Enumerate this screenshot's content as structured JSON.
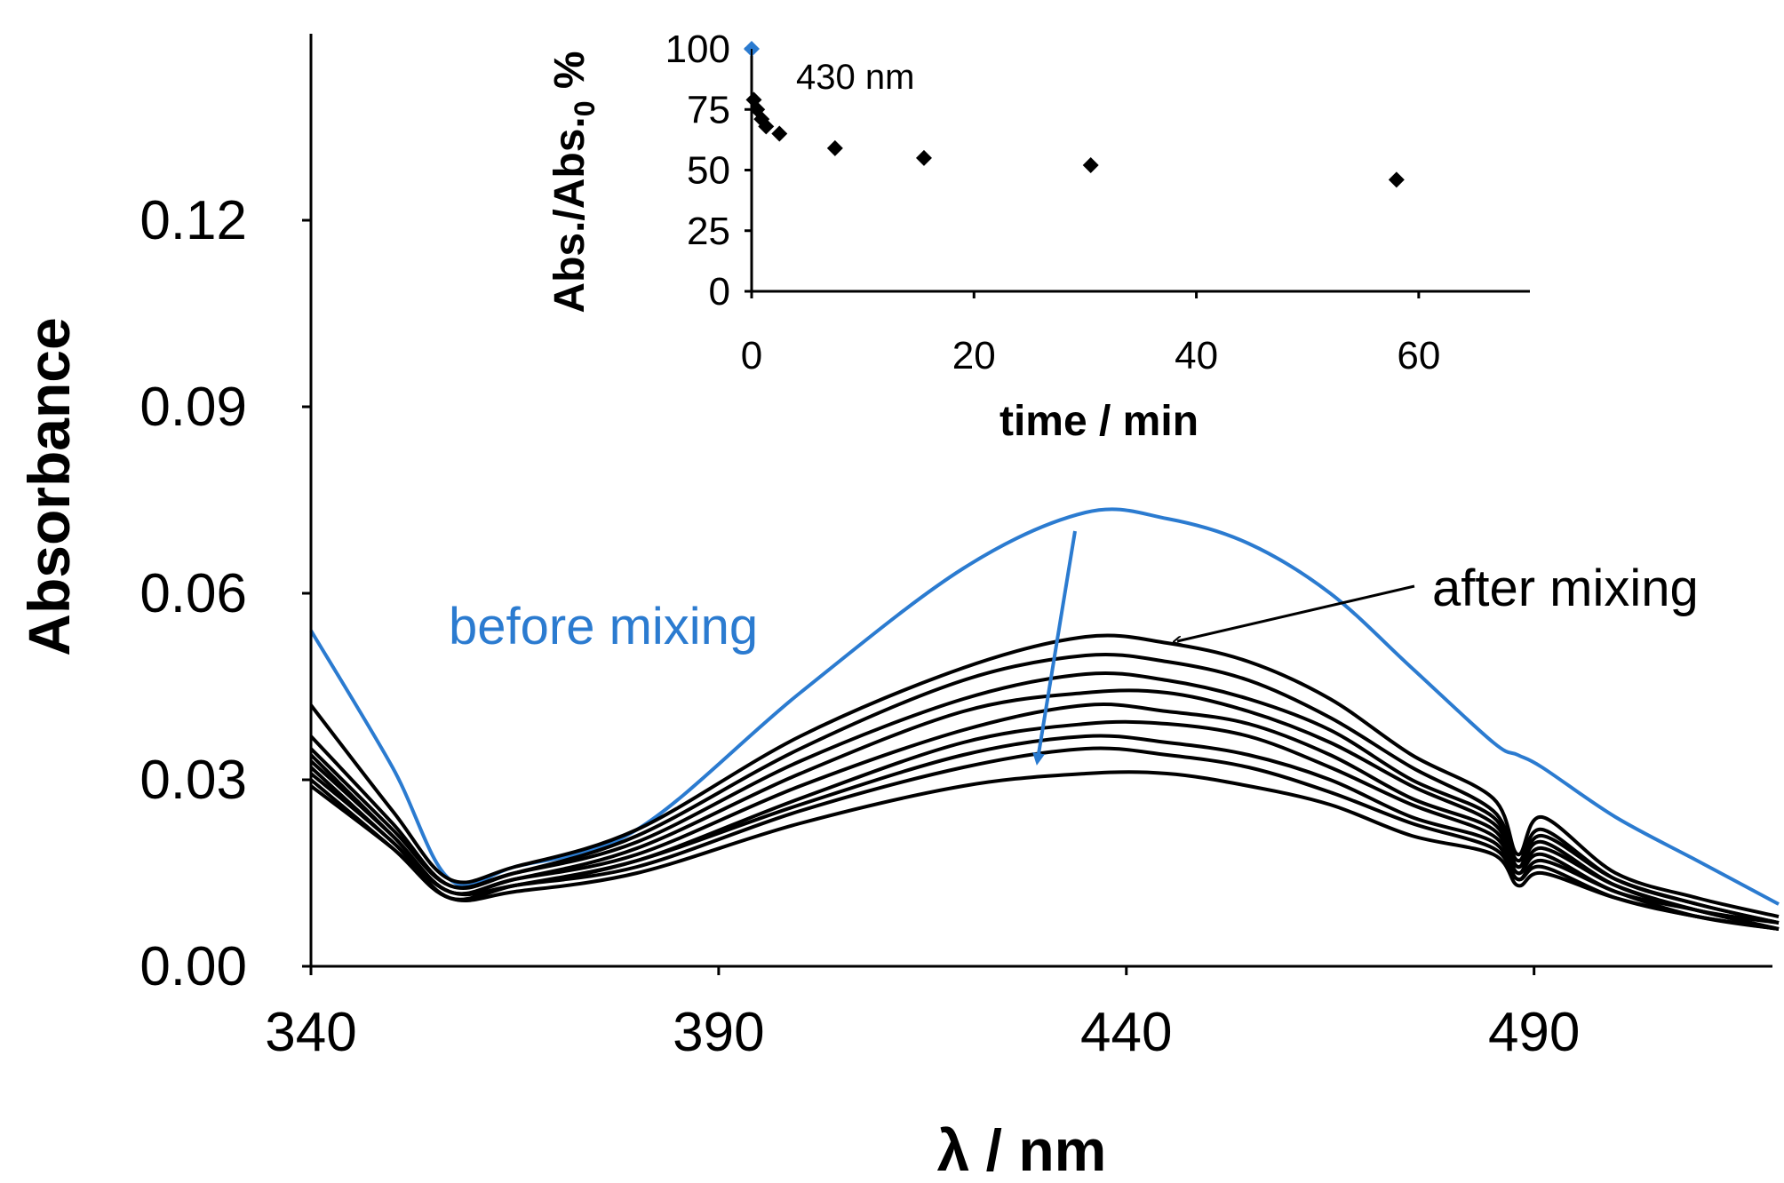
{
  "chart_data": [
    {
      "type": "line",
      "title": "",
      "xlabel": "λ / nm",
      "ylabel": "Absorbance",
      "xlim": [
        340,
        520
      ],
      "ylim": [
        0,
        0.15
      ],
      "x_ticks": [
        340,
        390,
        440,
        490
      ],
      "x_tick_labels": [
        "340",
        "390",
        "440",
        "490"
      ],
      "y_ticks": [
        0,
        0.03,
        0.06,
        0.09,
        0.12
      ],
      "y_tick_labels": [
        "0.00",
        "0.03",
        "0.06",
        "0.09",
        "0.12"
      ],
      "grid": false,
      "legend": "none",
      "colors": {
        "before": "#2b7bd0",
        "after": "#000000"
      },
      "annotations": [
        {
          "text": "before mixing",
          "color": "#2b7bd0"
        },
        {
          "text": "after mixing",
          "color": "#000000"
        }
      ],
      "x": [
        340,
        350,
        357,
        365,
        380,
        400,
        420,
        435,
        445,
        455,
        465,
        475,
        485,
        488,
        491,
        500,
        510,
        520
      ],
      "series": [
        {
          "name": "before mixing",
          "values": [
            0.054,
            0.032,
            0.014,
            0.016,
            0.022,
            0.044,
            0.064,
            0.073,
            0.072,
            0.068,
            0.06,
            0.048,
            0.036,
            0.034,
            0.032,
            0.024,
            0.017,
            0.01
          ]
        },
        {
          "name": "after mixing 1",
          "values": [
            0.042,
            0.025,
            0.014,
            0.016,
            0.022,
            0.037,
            0.048,
            0.053,
            0.052,
            0.049,
            0.043,
            0.034,
            0.027,
            0.018,
            0.024,
            0.015,
            0.011,
            0.008
          ]
        },
        {
          "name": "after mixing 2",
          "values": [
            0.037,
            0.023,
            0.013,
            0.015,
            0.021,
            0.035,
            0.046,
            0.05,
            0.049,
            0.046,
            0.04,
            0.032,
            0.025,
            0.017,
            0.022,
            0.014,
            0.01,
            0.007
          ]
        },
        {
          "name": "after mixing 3",
          "values": [
            0.035,
            0.022,
            0.013,
            0.015,
            0.02,
            0.033,
            0.043,
            0.047,
            0.046,
            0.043,
            0.038,
            0.03,
            0.024,
            0.016,
            0.021,
            0.014,
            0.01,
            0.007
          ]
        },
        {
          "name": "after mixing 4",
          "values": [
            0.034,
            0.021,
            0.012,
            0.014,
            0.019,
            0.031,
            0.041,
            0.044,
            0.044,
            0.041,
            0.036,
            0.029,
            0.023,
            0.016,
            0.02,
            0.013,
            0.009,
            0.007
          ]
        },
        {
          "name": "after mixing 5",
          "values": [
            0.033,
            0.021,
            0.012,
            0.014,
            0.018,
            0.029,
            0.038,
            0.042,
            0.041,
            0.039,
            0.034,
            0.027,
            0.022,
            0.015,
            0.019,
            0.013,
            0.009,
            0.006
          ]
        },
        {
          "name": "after mixing 6",
          "values": [
            0.032,
            0.02,
            0.012,
            0.013,
            0.017,
            0.027,
            0.036,
            0.039,
            0.039,
            0.037,
            0.032,
            0.026,
            0.021,
            0.015,
            0.018,
            0.012,
            0.009,
            0.006
          ]
        },
        {
          "name": "after mixing 7",
          "values": [
            0.031,
            0.02,
            0.011,
            0.013,
            0.017,
            0.026,
            0.034,
            0.037,
            0.036,
            0.034,
            0.03,
            0.024,
            0.02,
            0.014,
            0.017,
            0.012,
            0.008,
            0.006
          ]
        },
        {
          "name": "after mixing 8",
          "values": [
            0.03,
            0.019,
            0.011,
            0.013,
            0.016,
            0.025,
            0.032,
            0.035,
            0.034,
            0.032,
            0.028,
            0.023,
            0.019,
            0.014,
            0.016,
            0.011,
            0.008,
            0.006
          ]
        },
        {
          "name": "after mixing 9",
          "values": [
            0.029,
            0.019,
            0.011,
            0.012,
            0.015,
            0.023,
            0.029,
            0.031,
            0.031,
            0.029,
            0.026,
            0.021,
            0.018,
            0.013,
            0.015,
            0.011,
            0.008,
            0.006
          ]
        }
      ]
    },
    {
      "type": "scatter",
      "title": "430 nm",
      "xlabel": "time / min",
      "ylabel": "Abs./Abs.",
      "ylabel_subscript": "0",
      "ylabel_suffix": " %",
      "xlim": [
        0,
        70
      ],
      "ylim": [
        0,
        100
      ],
      "x_ticks": [
        0,
        20,
        40,
        60
      ],
      "x_tick_labels": [
        "0",
        "20",
        "40",
        "60"
      ],
      "y_ticks": [
        0,
        25,
        50,
        75,
        100
      ],
      "y_tick_labels": [
        "0",
        "25",
        "50",
        "75",
        "100"
      ],
      "grid": false,
      "legend": "none",
      "series": [
        {
          "name": "before mixing",
          "color": "#2b7bd0",
          "x": [
            0
          ],
          "values": [
            100
          ]
        },
        {
          "name": "after mixing",
          "color": "#000000",
          "x": [
            0.2,
            0.5,
            0.9,
            1.3,
            2.5,
            7.5,
            15.5,
            30.5,
            58
          ],
          "values": [
            79,
            75,
            71,
            68,
            65,
            59,
            55,
            52,
            46
          ]
        }
      ]
    }
  ]
}
